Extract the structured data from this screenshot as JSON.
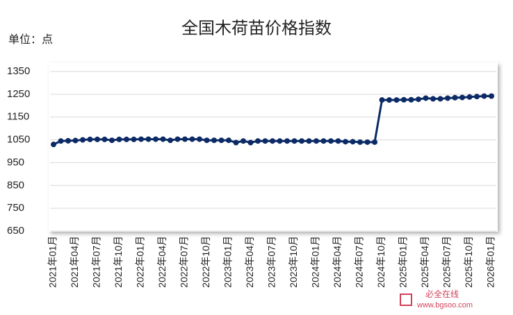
{
  "chart_data": {
    "type": "line",
    "title": "全国木荷苗价格指数",
    "unit_label": "单位：点",
    "categories": [
      "2021年01月",
      null,
      null,
      "2021年04月",
      null,
      null,
      "2021年07月",
      null,
      null,
      "2021年10月",
      null,
      null,
      "2022年01月",
      null,
      null,
      "2022年04月",
      null,
      null,
      "2022年07月",
      null,
      null,
      "2022年10月",
      null,
      null,
      "2023年01月",
      null,
      null,
      "2023年04月",
      null,
      null,
      "2023年07月",
      null,
      null,
      "2023年10月",
      null,
      null,
      "2024年01月",
      null,
      null,
      "2024年04月",
      null,
      null,
      "2024年07月",
      null,
      null,
      "2024年10月",
      null,
      null,
      "2025年01月",
      null,
      null,
      "2025年04月",
      null,
      null,
      "2025年07月",
      null,
      null,
      "2025年10月",
      null,
      null,
      "2026年01月"
    ],
    "series": [
      {
        "name": "全国木荷苗价格指数",
        "color": "#0b2a66",
        "values": [
          1030,
          1045,
          1046,
          1047,
          1050,
          1052,
          1052,
          1052,
          1048,
          1052,
          1052,
          1052,
          1053,
          1053,
          1053,
          1053,
          1048,
          1053,
          1053,
          1053,
          1053,
          1048,
          1048,
          1048,
          1048,
          1038,
          1045,
          1038,
          1045,
          1045,
          1045,
          1045,
          1045,
          1045,
          1045,
          1045,
          1045,
          1045,
          1045,
          1045,
          1042,
          1042,
          1040,
          1040,
          1040,
          1225,
          1225,
          1225,
          1226,
          1226,
          1228,
          1233,
          1230,
          1230,
          1233,
          1235,
          1236,
          1238,
          1240,
          1242,
          1242
        ]
      }
    ],
    "ylim": [
      650,
      1350
    ],
    "yticks": [
      650,
      750,
      850,
      950,
      1050,
      1150,
      1250,
      1350
    ],
    "grid": true,
    "watermark": {
      "name": "必全在线",
      "url": "www.bgsoo.com"
    }
  }
}
